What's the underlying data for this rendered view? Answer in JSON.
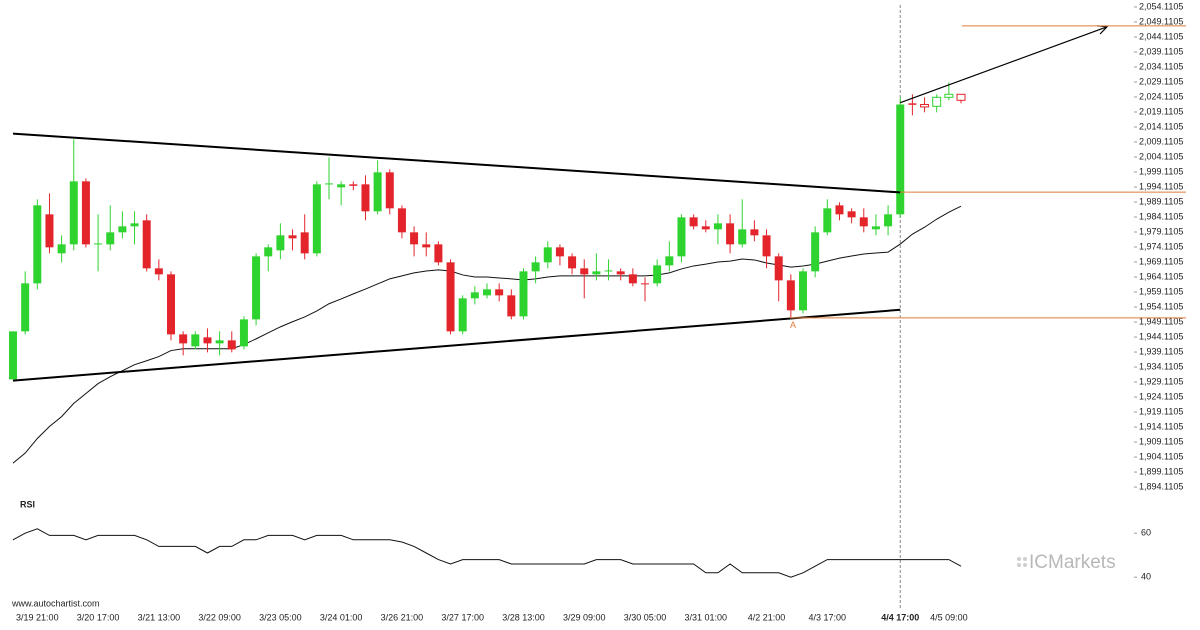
{
  "chart_data": {
    "type": "candlestick",
    "categories": [
      null,
      null,
      "3/19 21:00",
      null,
      null,
      null,
      null,
      "3/20 17:00",
      null,
      null,
      null,
      null,
      "3/21 13:00",
      null,
      null,
      null,
      null,
      "3/22 09:00",
      null,
      null,
      null,
      null,
      "3/23 05:00",
      null,
      null,
      null,
      null,
      "3/24 01:00",
      null,
      null,
      null,
      null,
      "3/26 21:00",
      null,
      null,
      null,
      null,
      "3/27 17:00",
      null,
      null,
      null,
      null,
      "3/28 13:00",
      null,
      null,
      null,
      null,
      "3/29 09:00",
      null,
      null,
      null,
      null,
      "3/30 05:00",
      null,
      null,
      null,
      null,
      "3/31 01:00",
      null,
      null,
      null,
      null,
      "4/2 21:00",
      null,
      null,
      null,
      null,
      "4/3 17:00",
      null,
      null,
      null,
      null,
      null,
      "4/4 17:00",
      null,
      null,
      null,
      "4/5 09:00",
      null
    ],
    "open": [
      1930,
      1946,
      1962,
      1985,
      1972,
      1975,
      1996,
      1975,
      1975,
      1979,
      1981,
      1983,
      1967,
      1965,
      1945,
      1941,
      1944,
      1942,
      1943,
      1941,
      1950,
      1971,
      1973,
      1978,
      1979,
      1972,
      1995,
      1994,
      1995,
      1995,
      1986,
      1999,
      1987,
      1979,
      1975,
      1975,
      1969,
      1946,
      1957,
      1958,
      1960,
      1958,
      1951,
      1966,
      1969,
      1974,
      1971,
      1967,
      1965,
      1966,
      1966,
      1965,
      1962,
      1962,
      1968,
      1971,
      1984,
      1981,
      1980,
      1982,
      1975,
      1980,
      1978,
      1971,
      1963,
      1953,
      1966,
      1979,
      1988,
      1986,
      1984,
      1980,
      1981,
      1985,
      2022,
      2021.6,
      2021,
      2024,
      2025
    ],
    "high": [
      1946,
      1966,
      1990,
      1992,
      1978,
      2010,
      1997,
      1985,
      1988,
      1986,
      1986,
      1985,
      1970,
      1966,
      1946,
      1946,
      1947,
      1946,
      1946,
      1951,
      1972,
      1975,
      1982,
      1980,
      1985,
      1996,
      2004,
      1996,
      1996,
      1998,
      2003,
      2000,
      1988,
      1981,
      1979,
      1976,
      1970,
      1958,
      1961,
      1962,
      1962,
      1960,
      1967,
      1971,
      1976,
      1975,
      1972,
      1970,
      1972,
      1970,
      1967,
      1967,
      1964,
      1970,
      1976,
      1985,
      1985,
      1983,
      1985,
      1985,
      1990,
      1983,
      1980,
      1972,
      1965,
      1967,
      1981,
      1990,
      1989,
      1987,
      1987,
      1985,
      1988,
      2024,
      2025,
      2024,
      2025,
      2029,
      2025
    ],
    "low": [
      1930,
      1945,
      1960,
      1972,
      1969,
      1973,
      1974,
      1966,
      1973,
      1977,
      1975,
      1966,
      1963,
      1943,
      1938,
      1940,
      1939,
      1938,
      1939,
      1940,
      1948,
      1966,
      1970,
      1973,
      1970,
      1971,
      1990,
      1988,
      1993,
      1983,
      1985,
      1985,
      1977,
      1971,
      1971,
      1968,
      1945,
      1945,
      1955,
      1957,
      1956,
      1950,
      1950,
      1962,
      1967,
      1968,
      1965,
      1957,
      1963,
      1963,
      1963,
      1961,
      1956,
      1961,
      1966,
      1969,
      1980,
      1979,
      1975,
      1972,
      1974,
      1976,
      1967,
      1956,
      1950,
      1952,
      1964,
      1978,
      1983,
      1982,
      1979,
      1978,
      1978,
      1984,
      2018,
      2019,
      2019,
      2023,
      2022
    ],
    "close": [
      1946,
      1962,
      1988,
      1974,
      1975,
      1996,
      1975,
      1975.3,
      1979,
      1981,
      1982,
      1967,
      1965,
      1945,
      1942,
      1945,
      1942,
      1943,
      1940,
      1950,
      1971,
      1974,
      1978,
      1977,
      1972,
      1995,
      1995.3,
      1995,
      1994.5,
      1986,
      1999,
      1987,
      1979,
      1975,
      1974,
      1969,
      1946,
      1957,
      1959,
      1960,
      1958,
      1951,
      1966,
      1969,
      1974,
      1971,
      1967,
      1965,
      1966,
      1966.3,
      1965,
      1962,
      1961.7,
      1968,
      1971,
      1984,
      1981,
      1980,
      1982,
      1975,
      1980,
      1978,
      1971,
      1963,
      1953,
      1966,
      1979,
      1987,
      1985,
      1984,
      1981,
      1981,
      1985,
      2021.6,
      2021.5,
      2020.8,
      2024,
      2025,
      2023
    ],
    "up_color": "#2fd32f",
    "down_color": "#e3242b",
    "moving_average": [
      1902.1,
      1905.4,
      1910.3,
      1914.3,
      1917.6,
      1922.0,
      1925.3,
      1928.6,
      1930.9,
      1932.9,
      1934.9,
      1936.2,
      1937.6,
      1939.6,
      1940.2,
      1940.2,
      1940.2,
      1940.2,
      1940.2,
      1941.6,
      1943.5,
      1945.5,
      1947.5,
      1949.2,
      1950.8,
      1952.8,
      1955.2,
      1956.8,
      1958.5,
      1960.1,
      1961.8,
      1963.5,
      1964.5,
      1965.5,
      1966.1,
      1966.5,
      1966.1,
      1964.8,
      1964.1,
      1964.1,
      1963.8,
      1963.5,
      1963.1,
      1963.5,
      1964.1,
      1964.5,
      1964.5,
      1964.5,
      1964.5,
      1964.5,
      1964.5,
      1964.5,
      1964.5,
      1964.8,
      1965.5,
      1966.8,
      1967.8,
      1968.4,
      1969.1,
      1969.4,
      1970.1,
      1969.8,
      1968.8,
      1968.1,
      1967.4,
      1967.8,
      1968.4,
      1969.4,
      1970.4,
      1971.1,
      1971.8,
      1972.1,
      1972.4,
      1975.1,
      1978.4,
      1980.7,
      1983.4,
      1985.7,
      1987.7
    ],
    "resistance_line": [
      2011.9,
      1992.3
    ],
    "support_line": [
      1929.6,
      1953.2
    ],
    "projection": [
      2022.2,
      2047.5
    ],
    "levels": [
      2047.8,
      1992.4,
      1950.5
    ],
    "level_color": "#e07b39",
    "pattern_point_label": "A",
    "ylim": [
      1889.8,
      2056.43
    ],
    "yticks": [
      {
        "value": 2054.1105,
        "label": "2,054.1105"
      },
      {
        "value": 2049.1105,
        "label": "2,049.1105"
      },
      {
        "value": 2044.1105,
        "label": "2,044.1105"
      },
      {
        "value": 2039.1105,
        "label": "2,039.1105"
      },
      {
        "value": 2034.1105,
        "label": "2,034.1105"
      },
      {
        "value": 2029.1105,
        "label": "2,029.1105"
      },
      {
        "value": 2024.1105,
        "label": "2,024.1105"
      },
      {
        "value": 2019.1105,
        "label": "2,019.1105"
      },
      {
        "value": 2014.1105,
        "label": "2,014.1105"
      },
      {
        "value": 2009.1105,
        "label": "2,009.1105"
      },
      {
        "value": 2004.1105,
        "label": "2,004.1105"
      },
      {
        "value": 1999.1105,
        "label": "1,999.1105"
      },
      {
        "value": 1994.1105,
        "label": "1,994.1105"
      },
      {
        "value": 1989.1105,
        "label": "1,989.1105"
      },
      {
        "value": 1984.1105,
        "label": "1,984.1105"
      },
      {
        "value": 1979.1105,
        "label": "1,979.1105"
      },
      {
        "value": 1974.1105,
        "label": "1,974.1105"
      },
      {
        "value": 1969.1105,
        "label": "1,969.1105"
      },
      {
        "value": 1964.1105,
        "label": "1,964.1105"
      },
      {
        "value": 1959.1105,
        "label": "1,959.1105"
      },
      {
        "value": 1954.1105,
        "label": "1,954.1105"
      },
      {
        "value": 1949.1105,
        "label": "1,949.1105"
      },
      {
        "value": 1944.1105,
        "label": "1,944.1105"
      },
      {
        "value": 1939.1105,
        "label": "1,939.1105"
      },
      {
        "value": 1934.1105,
        "label": "1,934.1105"
      },
      {
        "value": 1929.1105,
        "label": "1,929.1105"
      },
      {
        "value": 1924.1105,
        "label": "1,924.1105"
      },
      {
        "value": 1919.1105,
        "label": "1,919.1105"
      },
      {
        "value": 1914.1105,
        "label": "1,914.1105"
      },
      {
        "value": 1909.1105,
        "label": "1,909.1105"
      },
      {
        "value": 1904.1105,
        "label": "1,904.1105"
      },
      {
        "value": 1899.1105,
        "label": "1,899.1105"
      },
      {
        "value": 1894.1105,
        "label": "1,894.1105"
      }
    ],
    "rsi": {
      "title": "RSI",
      "values": [
        57,
        60,
        62,
        59,
        59,
        59,
        57,
        59,
        59,
        59,
        59,
        57,
        54,
        54,
        54,
        54,
        51,
        54,
        54,
        57,
        57,
        59,
        59,
        59,
        57,
        59,
        59,
        59,
        57,
        57,
        57,
        57,
        56,
        54,
        51,
        48,
        46,
        48,
        48,
        48,
        48,
        46,
        46,
        46,
        46,
        46,
        46,
        46,
        48,
        48,
        48,
        46,
        46,
        46,
        46,
        46,
        46,
        42,
        42,
        46,
        42,
        42,
        42,
        42,
        40,
        42,
        45,
        48,
        48,
        48,
        48,
        48,
        48,
        48,
        48,
        48,
        48,
        48,
        45
      ],
      "ylim": [
        36,
        76
      ],
      "yticks": [
        60,
        40
      ]
    },
    "source": "www.autochartist.com",
    "watermark": "ICMarkets"
  }
}
